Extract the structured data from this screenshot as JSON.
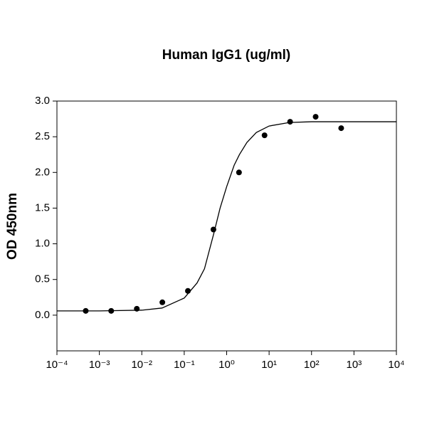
{
  "chart_data": {
    "type": "scatter",
    "title": "Human IgG1 (ug/ml)",
    "y_label": "OD 450nm",
    "xscale": "log",
    "xlim": [
      0.0001,
      10000
    ],
    "ylim": [
      -0.5,
      3.0
    ],
    "xticks": [
      {
        "value": 0.0001,
        "label": "10⁻⁴"
      },
      {
        "value": 0.001,
        "label": "10⁻³"
      },
      {
        "value": 0.01,
        "label": "10⁻²"
      },
      {
        "value": 0.1,
        "label": "10⁻¹"
      },
      {
        "value": 1,
        "label": "10⁰"
      },
      {
        "value": 10,
        "label": "10¹"
      },
      {
        "value": 100,
        "label": "10²"
      },
      {
        "value": 1000,
        "label": "10³"
      },
      {
        "value": 10000,
        "label": "10⁴"
      }
    ],
    "yticks": [
      {
        "value": 0,
        "label": "0.0"
      },
      0.5,
      {
        "value": 1,
        "label": "1.0"
      },
      1.5,
      {
        "value": 2,
        "label": "2.0"
      },
      2.5,
      {
        "value": 3,
        "label": "3.0"
      }
    ],
    "series": [
      {
        "type": "line",
        "color": "#000000",
        "x": [
          0.0001,
          0.001,
          0.01,
          0.03,
          0.1,
          0.2,
          0.3,
          0.5,
          0.7,
          1,
          1.5,
          2,
          3,
          5,
          10,
          30,
          100,
          1000,
          10000
        ],
        "values": [
          0.06,
          0.06,
          0.07,
          0.1,
          0.24,
          0.45,
          0.65,
          1.15,
          1.5,
          1.8,
          2.1,
          2.25,
          2.42,
          2.56,
          2.65,
          2.7,
          2.71,
          2.71,
          2.71
        ]
      },
      {
        "type": "scatter",
        "color": "#000000",
        "x": [
          0.000477,
          0.0019,
          0.00763,
          0.0305,
          0.122,
          0.488,
          1.953,
          7.8125,
          31.25,
          125,
          500
        ],
        "values": [
          0.06,
          0.06,
          0.09,
          0.18,
          0.34,
          1.2,
          2.0,
          2.52,
          2.71,
          2.78,
          2.62
        ]
      }
    ]
  }
}
